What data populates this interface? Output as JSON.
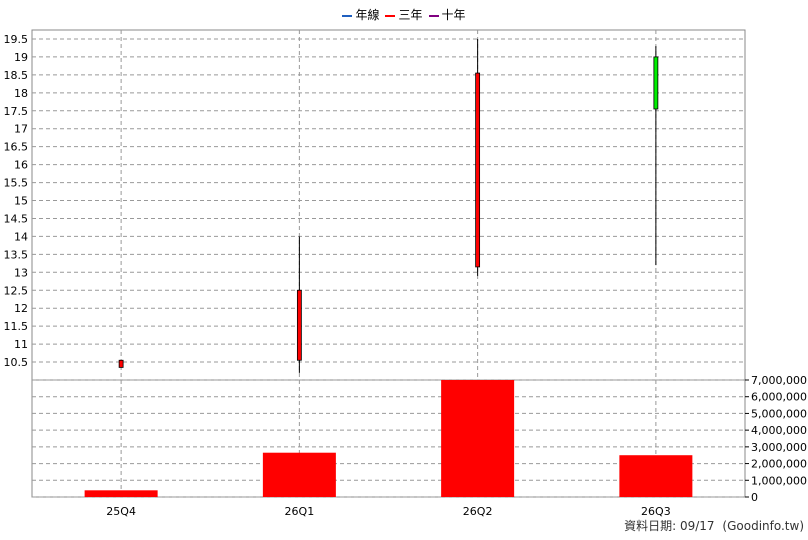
{
  "legend": [
    {
      "label": "年線",
      "color": "#1f5fbf"
    },
    {
      "label": "三年",
      "color": "#ff0000"
    },
    {
      "label": "十年",
      "color": "#800080"
    }
  ],
  "footer": {
    "date_label": "資料日期: 09/17",
    "source": "(Goodinfo.tw)"
  },
  "colors": {
    "up": "#ff0000",
    "down": "#00ee00",
    "volume": "#ff0000",
    "grid": "#999999",
    "wick": "#000000"
  },
  "chart_data": [
    {
      "type": "candlestick",
      "categories": [
        "25Q4",
        "26Q1",
        "26Q2",
        "26Q3"
      ],
      "series": [
        {
          "values": [
            {
              "open": 10.35,
              "close": 10.55,
              "high": 10.55,
              "low": 10.35
            },
            {
              "open": 10.55,
              "close": 12.5,
              "high": 14.0,
              "low": 10.2
            },
            {
              "open": 13.15,
              "close": 18.55,
              "high": 19.5,
              "low": 12.9
            },
            {
              "open": 19.0,
              "close": 17.55,
              "high": 19.3,
              "low": 13.2
            }
          ]
        }
      ],
      "yticks": [
        "10.5",
        "11",
        "11.5",
        "12",
        "12.5",
        "13",
        "13.5",
        "14",
        "14.5",
        "15",
        "15.5",
        "16",
        "16.5",
        "17",
        "17.5",
        "18",
        "18.5",
        "19",
        "19.5"
      ],
      "ylim": [
        10.0,
        19.75
      ],
      "grid": true
    },
    {
      "type": "bar",
      "categories": [
        "25Q4",
        "26Q1",
        "26Q2",
        "26Q3"
      ],
      "values": [
        400000,
        2650000,
        7000000,
        2500000
      ],
      "yticks": [
        "0",
        "1,000,000",
        "2,000,000",
        "3,000,000",
        "4,000,000",
        "5,000,000",
        "6,000,000",
        "7,000,000"
      ],
      "ylim": [
        0,
        7000000
      ],
      "grid": true
    }
  ]
}
